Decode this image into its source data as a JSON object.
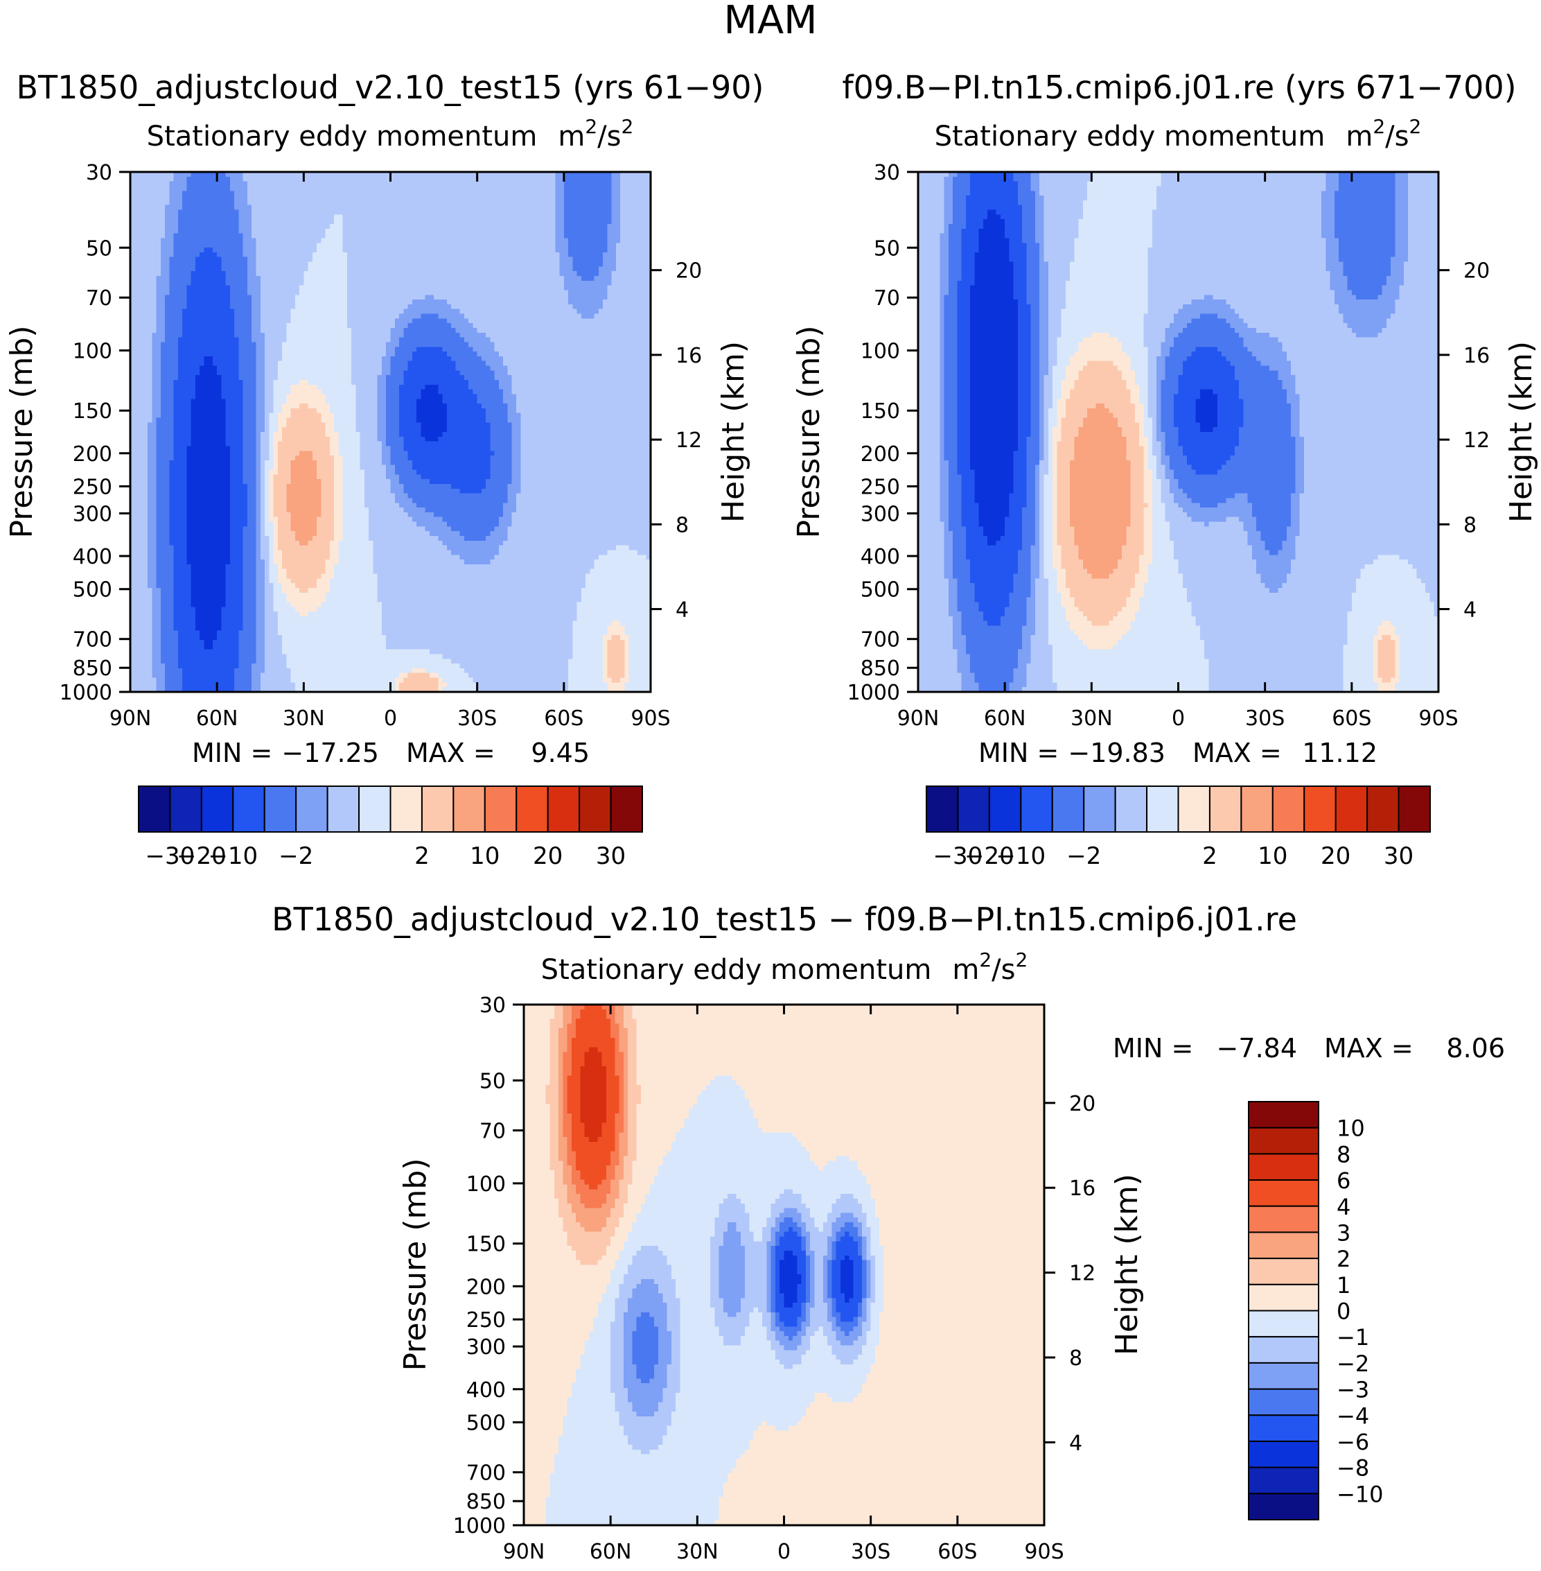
{
  "page_title": "MAM",
  "chart_data": [
    {
      "type": "heatmap",
      "panel": "top-left",
      "run_title": "BT1850_adjustcloud_v2.10_test15 (yrs 61−90)",
      "title": "Stationary eddy momentum",
      "units": "m²/s²",
      "units_base": "m",
      "units_exp": "2",
      "units_mid": "/s",
      "units_exp2": "2",
      "xlabel": "",
      "ylabel": "Pressure (mb)",
      "ylabel_right": "Height (km)",
      "x_ticks": [
        "90N",
        "60N",
        "30N",
        "0",
        "30S",
        "60S",
        "90S"
      ],
      "x_range": [
        90,
        -90
      ],
      "y_ticks": [
        30,
        50,
        70,
        100,
        150,
        200,
        250,
        300,
        400,
        500,
        700,
        850,
        1000
      ],
      "y_range": [
        30,
        1000
      ],
      "height_ticks": [
        20,
        16,
        12,
        8,
        4
      ],
      "min_label": "MIN =",
      "min_value": "−17.25",
      "max_label": "MAX =",
      "max_value": "9.45",
      "min": -17.25,
      "max": 9.45,
      "colorbar": {
        "orientation": "horizontal",
        "levels": [
          -30,
          -20,
          -10,
          -5,
          -2,
          -1,
          0,
          1,
          2,
          5,
          10,
          15,
          20,
          25,
          30
        ],
        "tick_labels": [
          "−30",
          "−20",
          "−10",
          "−2",
          "2",
          "10",
          "20",
          "30"
        ],
        "tick_index": [
          0,
          1,
          2,
          4,
          8,
          10,
          12,
          14
        ]
      },
      "features": [
        {
          "sign": -1,
          "lat": 63,
          "plev": 280,
          "lat_width": 9,
          "logp_width": 1.2,
          "amp": -14
        },
        {
          "sign": -1,
          "lat": -13,
          "plev": 150,
          "lat_width": 8,
          "logp_width": 0.35,
          "amp": -11
        },
        {
          "sign": -1,
          "lat": -30,
          "plev": 200,
          "lat_width": 8,
          "logp_width": 0.4,
          "amp": -6
        },
        {
          "sign": -1,
          "lat": -68,
          "plev": 35,
          "lat_width": 7,
          "logp_width": 0.5,
          "amp": -4
        },
        {
          "sign": 1,
          "lat": 30,
          "plev": 270,
          "lat_width": 7,
          "logp_width": 0.4,
          "amp": 7
        },
        {
          "sign": 1,
          "lat": -10,
          "plev": 960,
          "lat_width": 5,
          "logp_width": 0.06,
          "amp": 5
        },
        {
          "sign": 1,
          "lat": -78,
          "plev": 800,
          "lat_width": 3,
          "logp_width": 0.15,
          "amp": 4
        }
      ]
    },
    {
      "type": "heatmap",
      "panel": "top-right",
      "run_title": "f09.B−PI.tn15.cmip6.j01.re (yrs 671−700)",
      "title": "Stationary eddy momentum",
      "units": "m²/s²",
      "units_base": "m",
      "units_exp": "2",
      "units_mid": "/s",
      "units_exp2": "2",
      "xlabel": "",
      "ylabel": "Pressure (mb)",
      "ylabel_right": "Height (km)",
      "x_ticks": [
        "90N",
        "60N",
        "30N",
        "0",
        "30S",
        "60S",
        "90S"
      ],
      "x_range": [
        90,
        -90
      ],
      "y_ticks": [
        30,
        50,
        70,
        100,
        150,
        200,
        250,
        300,
        400,
        500,
        700,
        850,
        1000
      ],
      "y_range": [
        30,
        1000
      ],
      "height_ticks": [
        20,
        16,
        12,
        8,
        4
      ],
      "min_label": "MIN =",
      "min_value": "−19.83",
      "max_label": "MAX =",
      "max_value": "11.12",
      "min": -19.83,
      "max": 11.12,
      "colorbar": {
        "orientation": "horizontal",
        "levels": [
          -30,
          -20,
          -10,
          -5,
          -2,
          -1,
          0,
          1,
          2,
          5,
          10,
          15,
          20,
          25,
          30
        ],
        "tick_labels": [
          "−30",
          "−20",
          "−10",
          "−2",
          "2",
          "10",
          "20",
          "30"
        ],
        "tick_index": [
          0,
          1,
          2,
          4,
          8,
          10,
          12,
          14
        ]
      },
      "features": [
        {
          "sign": -1,
          "lat": 64,
          "plev": 120,
          "lat_width": 8,
          "logp_width": 1.05,
          "amp": -18
        },
        {
          "sign": -1,
          "lat": -10,
          "plev": 150,
          "lat_width": 9,
          "logp_width": 0.35,
          "amp": -11
        },
        {
          "sign": -1,
          "lat": -33,
          "plev": 220,
          "lat_width": 6,
          "logp_width": 0.5,
          "amp": -4
        },
        {
          "sign": -1,
          "lat": -65,
          "plev": 40,
          "lat_width": 9,
          "logp_width": 0.5,
          "amp": -4
        },
        {
          "sign": 1,
          "lat": 27,
          "plev": 260,
          "lat_width": 9,
          "logp_width": 0.5,
          "amp": 10
        },
        {
          "sign": 1,
          "lat": -72,
          "plev": 800,
          "lat_width": 3,
          "logp_width": 0.15,
          "amp": 4
        }
      ]
    },
    {
      "type": "heatmap",
      "panel": "bottom",
      "run_title": "BT1850_adjustcloud_v2.10_test15 − f09.B−PI.tn15.cmip6.j01.re",
      "title": "Stationary eddy momentum",
      "units": "m²/s²",
      "units_base": "m",
      "units_exp": "2",
      "units_mid": "/s",
      "units_exp2": "2",
      "xlabel": "",
      "ylabel": "Pressure (mb)",
      "ylabel_right": "Height (km)",
      "x_ticks": [
        "90N",
        "60N",
        "30N",
        "0",
        "30S",
        "60S",
        "90S"
      ],
      "x_range": [
        90,
        -90
      ],
      "y_ticks": [
        30,
        50,
        70,
        100,
        150,
        200,
        250,
        300,
        400,
        500,
        700,
        850,
        1000
      ],
      "y_range": [
        30,
        1000
      ],
      "height_ticks": [
        20,
        16,
        12,
        8,
        4
      ],
      "min_label": "MIN =",
      "min_value": "−7.84",
      "max_label": "MAX =",
      "max_value": "8.06",
      "min": -7.84,
      "max": 8.06,
      "colorbar": {
        "orientation": "vertical",
        "levels": [
          -10,
          -8,
          -6,
          -4,
          -3,
          -2,
          -1,
          0,
          1,
          2,
          3,
          4,
          6,
          8,
          10
        ],
        "tick_labels": [
          "10",
          "8",
          "6",
          "4",
          "3",
          "2",
          "1",
          "0",
          "−1",
          "−2",
          "−3",
          "−4",
          "−6",
          "−8",
          "−10"
        ]
      },
      "features": [
        {
          "sign": 1,
          "lat": 66,
          "plev": 55,
          "lat_width": 8,
          "logp_width": 0.6,
          "amp": 7
        },
        {
          "sign": -1,
          "lat": 48,
          "plev": 300,
          "lat_width": 8,
          "logp_width": 0.45,
          "amp": -3.5
        },
        {
          "sign": -1,
          "lat": 18,
          "plev": 180,
          "lat_width": 5,
          "logp_width": 0.35,
          "amp": -3
        },
        {
          "sign": -1,
          "lat": -2,
          "plev": 190,
          "lat_width": 5,
          "logp_width": 0.3,
          "amp": -7.5
        },
        {
          "sign": -1,
          "lat": -22,
          "plev": 190,
          "lat_width": 5,
          "logp_width": 0.3,
          "amp": -7
        },
        {
          "sign": 1,
          "lat": -60,
          "plev": 150,
          "lat_width": 25,
          "logp_width": 1.4,
          "amp": 0.6
        }
      ]
    }
  ]
}
